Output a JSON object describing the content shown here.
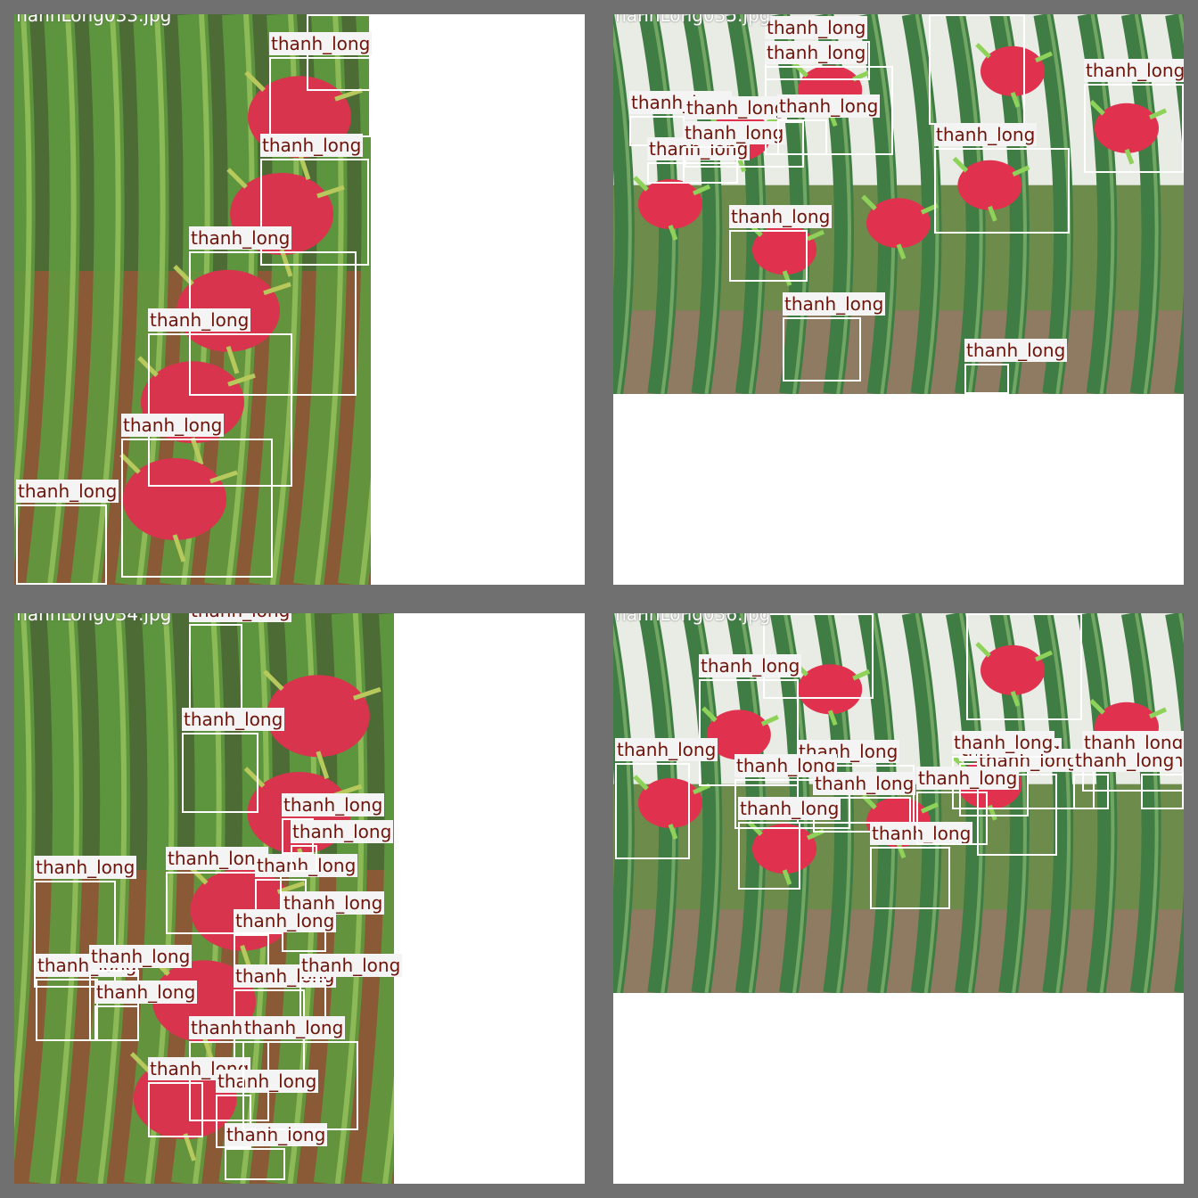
{
  "mosaic": {
    "colors": {
      "frame": "#707070",
      "box": "#ffffff",
      "label_bg": "#f4f4f4",
      "label_text": "#6e140a",
      "fruit": "#d8344e",
      "stem": "#4f8f45"
    },
    "tiles": [
      {
        "filename": "ThanhLong033.jpg",
        "scene": "vertical",
        "detections": [
          {
            "label": "thanh_long"
          },
          {
            "label": "thanh_long"
          },
          {
            "label": "thanh_long"
          },
          {
            "label": "thanh_long"
          },
          {
            "label": "thanh_long"
          },
          {
            "label": "thanh_long"
          },
          {
            "label": "thanh_long"
          }
        ]
      },
      {
        "filename": "ThanhLong035.jpg",
        "scene": "wide",
        "detections": [
          {
            "label": "thanh_long"
          },
          {
            "label": "thanh_long"
          },
          {
            "label": "thanh_long"
          },
          {
            "label": "thanh_long"
          },
          {
            "label": "thanh_long"
          },
          {
            "label": "thanh_long"
          },
          {
            "label": "thanh_long"
          },
          {
            "label": "thanh_long"
          },
          {
            "label": "thanh_long"
          },
          {
            "label": "thanh_long"
          },
          {
            "label": "thanh_long"
          },
          {
            "label": "thanh_long"
          },
          {
            "label": "thanh_long"
          }
        ]
      },
      {
        "filename": "ThanhLong034.jpg",
        "scene": "vertical",
        "detections": [
          {
            "label": "thanh_long"
          },
          {
            "label": "thanh_long"
          },
          {
            "label": "thanh_long"
          },
          {
            "label": "thanh_long"
          },
          {
            "label": "thanh_long"
          },
          {
            "label": "thanh_long"
          },
          {
            "label": "thanh_long"
          },
          {
            "label": "thanh_long"
          },
          {
            "label": "thanh_long"
          },
          {
            "label": "thanh_long"
          },
          {
            "label": "thanh_long"
          },
          {
            "label": "thanh_long"
          },
          {
            "label": "thanh_long"
          },
          {
            "label": "thanh_long"
          },
          {
            "label": "thanh_long"
          },
          {
            "label": "thanh_long"
          },
          {
            "label": "thanh_long"
          },
          {
            "label": "thanh_long"
          },
          {
            "label": "thanh_long"
          }
        ]
      },
      {
        "filename": "ThanhLong036.jpg",
        "scene": "wide",
        "detections": [
          {
            "label": "thanh_long"
          },
          {
            "label": "thanh_long"
          },
          {
            "label": "thanh_long"
          },
          {
            "label": "thanh_long"
          },
          {
            "label": "thanh_long"
          },
          {
            "label": "thanh_long"
          },
          {
            "label": "thanh_long"
          },
          {
            "label": "thanh_long"
          },
          {
            "label": "thanh_long"
          },
          {
            "label": "thanh_long"
          },
          {
            "label": "thanh_long"
          },
          {
            "label": "thanh_long"
          },
          {
            "label": "thanh_long"
          },
          {
            "label": "thanh_long"
          },
          {
            "label": "thanh_long"
          },
          {
            "label": "thanh_long"
          }
        ]
      }
    ]
  }
}
